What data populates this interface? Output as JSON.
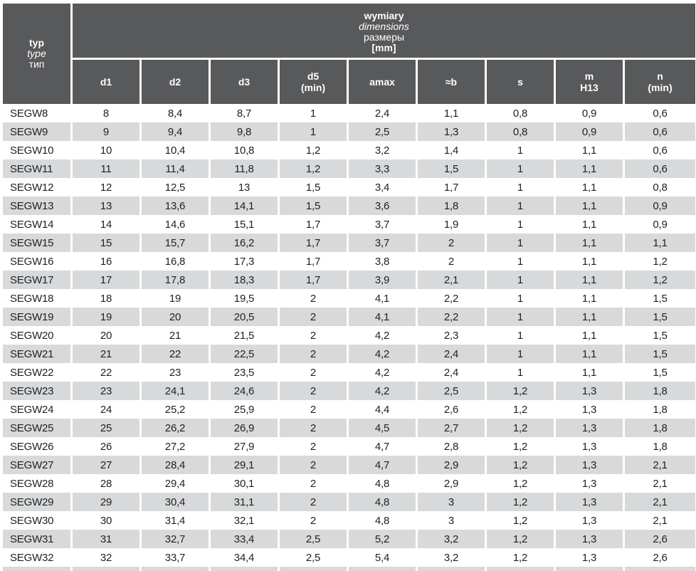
{
  "header": {
    "corner": [
      "typ",
      "type",
      "тип"
    ],
    "group": [
      "wymiary",
      "dimensions",
      "размеры",
      "[mm]"
    ],
    "columns": [
      [
        "d1"
      ],
      [
        "d2"
      ],
      [
        "d3"
      ],
      [
        "d5",
        "(min)"
      ],
      [
        "amax"
      ],
      [
        "≈b"
      ],
      [
        "s"
      ],
      [
        "m",
        "H13"
      ],
      [
        "n",
        "(min)"
      ]
    ]
  },
  "rows": [
    [
      "SEGW8",
      "8",
      "8,4",
      "8,7",
      "1",
      "2,4",
      "1,1",
      "0,8",
      "0,9",
      "0,6"
    ],
    [
      "SEGW9",
      "9",
      "9,4",
      "9,8",
      "1",
      "2,5",
      "1,3",
      "0,8",
      "0,9",
      "0,6"
    ],
    [
      "SEGW10",
      "10",
      "10,4",
      "10,8",
      "1,2",
      "3,2",
      "1,4",
      "1",
      "1,1",
      "0,6"
    ],
    [
      "SEGW11",
      "11",
      "11,4",
      "11,8",
      "1,2",
      "3,3",
      "1,5",
      "1",
      "1,1",
      "0,6"
    ],
    [
      "SEGW12",
      "12",
      "12,5",
      "13",
      "1,5",
      "3,4",
      "1,7",
      "1",
      "1,1",
      "0,8"
    ],
    [
      "SEGW13",
      "13",
      "13,6",
      "14,1",
      "1,5",
      "3,6",
      "1,8",
      "1",
      "1,1",
      "0,9"
    ],
    [
      "SEGW14",
      "14",
      "14,6",
      "15,1",
      "1,7",
      "3,7",
      "1,9",
      "1",
      "1,1",
      "0,9"
    ],
    [
      "SEGW15",
      "15",
      "15,7",
      "16,2",
      "1,7",
      "3,7",
      "2",
      "1",
      "1,1",
      "1,1"
    ],
    [
      "SEGW16",
      "16",
      "16,8",
      "17,3",
      "1,7",
      "3,8",
      "2",
      "1",
      "1,1",
      "1,2"
    ],
    [
      "SEGW17",
      "17",
      "17,8",
      "18,3",
      "1,7",
      "3,9",
      "2,1",
      "1",
      "1,1",
      "1,2"
    ],
    [
      "SEGW18",
      "18",
      "19",
      "19,5",
      "2",
      "4,1",
      "2,2",
      "1",
      "1,1",
      "1,5"
    ],
    [
      "SEGW19",
      "19",
      "20",
      "20,5",
      "2",
      "4,1",
      "2,2",
      "1",
      "1,1",
      "1,5"
    ],
    [
      "SEGW20",
      "20",
      "21",
      "21,5",
      "2",
      "4,2",
      "2,3",
      "1",
      "1,1",
      "1,5"
    ],
    [
      "SEGW21",
      "21",
      "22",
      "22,5",
      "2",
      "4,2",
      "2,4",
      "1",
      "1,1",
      "1,5"
    ],
    [
      "SEGW22",
      "22",
      "23",
      "23,5",
      "2",
      "4,2",
      "2,4",
      "1",
      "1,1",
      "1,5"
    ],
    [
      "SEGW23",
      "23",
      "24,1",
      "24,6",
      "2",
      "4,2",
      "2,5",
      "1,2",
      "1,3",
      "1,8"
    ],
    [
      "SEGW24",
      "24",
      "25,2",
      "25,9",
      "2",
      "4,4",
      "2,6",
      "1,2",
      "1,3",
      "1,8"
    ],
    [
      "SEGW25",
      "25",
      "26,2",
      "26,9",
      "2",
      "4,5",
      "2,7",
      "1,2",
      "1,3",
      "1,8"
    ],
    [
      "SEGW26",
      "26",
      "27,2",
      "27,9",
      "2",
      "4,7",
      "2,8",
      "1,2",
      "1,3",
      "1,8"
    ],
    [
      "SEGW27",
      "27",
      "28,4",
      "29,1",
      "2",
      "4,7",
      "2,9",
      "1,2",
      "1,3",
      "2,1"
    ],
    [
      "SEGW28",
      "28",
      "29,4",
      "30,1",
      "2",
      "4,8",
      "2,9",
      "1,2",
      "1,3",
      "2,1"
    ],
    [
      "SEGW29",
      "29",
      "30,4",
      "31,1",
      "2",
      "4,8",
      "3",
      "1,2",
      "1,3",
      "2,1"
    ],
    [
      "SEGW30",
      "30",
      "31,4",
      "32,1",
      "2",
      "4,8",
      "3",
      "1,2",
      "1,3",
      "2,1"
    ],
    [
      "SEGW31",
      "31",
      "32,7",
      "33,4",
      "2,5",
      "5,2",
      "3,2",
      "1,2",
      "1,3",
      "2,6"
    ],
    [
      "SEGW32",
      "32",
      "33,7",
      "34,4",
      "2,5",
      "5,4",
      "3,2",
      "1,2",
      "1,3",
      "2,6"
    ]
  ],
  "colors": {
    "header_bg": "#58595b",
    "alt_row_bg": "#d8d9da",
    "text": "#1f2021",
    "header_text": "#ffffff"
  }
}
